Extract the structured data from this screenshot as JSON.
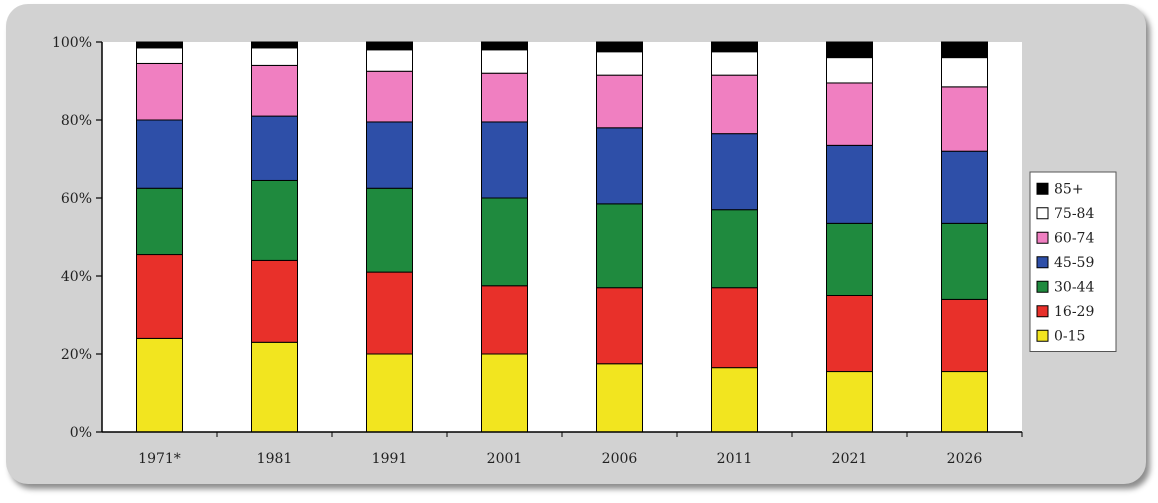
{
  "chart_data": {
    "type": "bar",
    "stacked": true,
    "normalized": true,
    "categories": [
      "1971*",
      "1981",
      "1991",
      "2001",
      "2006",
      "2011",
      "2021",
      "2026"
    ],
    "ylim": [
      0,
      100
    ],
    "yticks": [
      "0%",
      "20%",
      "40%",
      "60%",
      "80%",
      "100%"
    ],
    "grid": false,
    "legend_position": "right",
    "series": [
      {
        "name": "0-15",
        "color": "#f2e51f",
        "values": [
          24,
          23,
          20,
          20,
          17.5,
          16.5,
          15.5,
          15.5
        ]
      },
      {
        "name": "16-29",
        "color": "#e8302a",
        "values": [
          21.5,
          21,
          21,
          17.5,
          19.5,
          20.5,
          19.5,
          18.5
        ]
      },
      {
        "name": "30-44",
        "color": "#1f8a3e",
        "values": [
          17,
          20.5,
          21.5,
          22.5,
          21.5,
          20,
          18.5,
          19.5
        ]
      },
      {
        "name": "45-59",
        "color": "#2e4fa8",
        "values": [
          17.5,
          16.5,
          17,
          19.5,
          19.5,
          19.5,
          20,
          18.5
        ]
      },
      {
        "name": "60-74",
        "color": "#f07fc1",
        "values": [
          14.5,
          13,
          13,
          12.5,
          13.5,
          15,
          16,
          16.5
        ]
      },
      {
        "name": "75-84",
        "color": "#ffffff",
        "values": [
          4,
          4.5,
          5.5,
          6,
          6,
          6,
          6.5,
          7.5
        ]
      },
      {
        "name": "85+",
        "color": "#000000",
        "values": [
          1.5,
          1.5,
          2,
          2,
          2.5,
          2.5,
          4,
          4
        ]
      }
    ]
  }
}
